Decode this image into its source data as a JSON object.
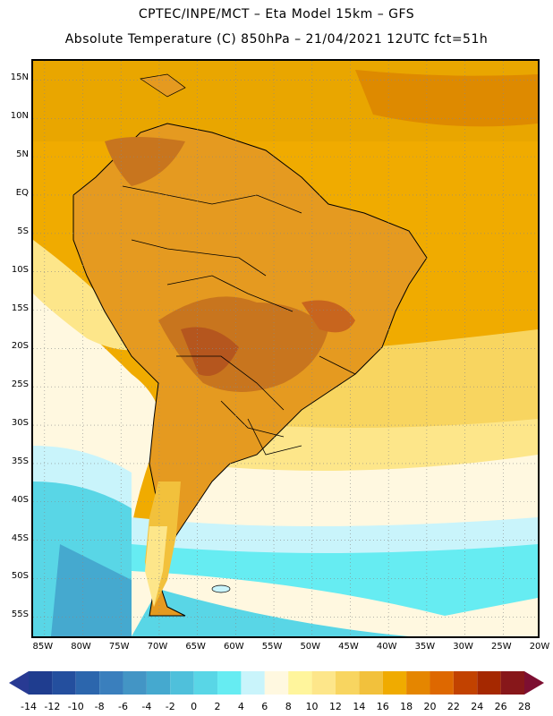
{
  "header": {
    "line1": "CPTEC/INPE/MCT –  Eta Model 15km – GFS",
    "line2": "Absolute Temperature (C) 850hPa – 21/04/2021 12UTC fct=51h"
  },
  "map": {
    "lat_labels": [
      "15N",
      "10N",
      "5N",
      "EQ",
      "5S",
      "10S",
      "15S",
      "20S",
      "25S",
      "30S",
      "35S",
      "40S",
      "45S",
      "50S",
      "55S"
    ],
    "lon_labels": [
      "85W",
      "80W",
      "75W",
      "70W",
      "65W",
      "60W",
      "55W",
      "50W",
      "45W",
      "40W",
      "35W",
      "30W",
      "25W",
      "20W"
    ],
    "lat_range": [
      17.5,
      -58
    ],
    "lon_range": [
      -86.5,
      -20
    ]
  },
  "colorbar": {
    "labels": [
      "-14",
      "-12",
      "-10",
      "-8",
      "-6",
      "-4",
      "-2",
      "0",
      "2",
      "4",
      "6",
      "8",
      "10",
      "12",
      "14",
      "16",
      "18",
      "20",
      "22",
      "24",
      "26",
      "28"
    ],
    "colors": [
      "#1f3d8f",
      "#244f9e",
      "#2c66ad",
      "#3a7fbd",
      "#4395c5",
      "#45a9cf",
      "#4fc0db",
      "#59d6e6",
      "#66ecf2",
      "#c9f4fb",
      "#fff8e0",
      "#fff59c",
      "#fde68a",
      "#f8d560",
      "#f2c13c",
      "#f0ab00",
      "#e58600",
      "#de6800",
      "#c24200",
      "#a52800",
      "#87171a"
    ],
    "left_arrow_color": "#283a93",
    "right_arrow_color": "#7d0f31"
  }
}
